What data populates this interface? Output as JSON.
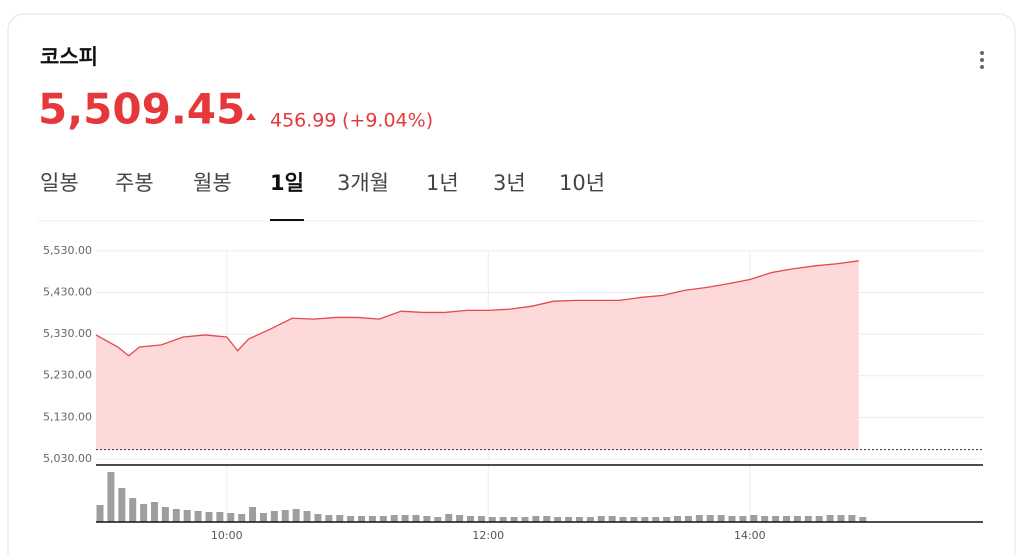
{
  "header": {
    "title": "코스피",
    "price": "5,509.45",
    "change": "456.99",
    "change_pct": "(+9.04%)"
  },
  "tabs": {
    "items": [
      "일봉",
      "주봉",
      "월봉",
      "1일",
      "3개월",
      "1년",
      "3년",
      "10년"
    ],
    "selected": 3
  },
  "chart_data": [
    {
      "type": "area",
      "color": "#e5484d",
      "fill": "#fdd9d9",
      "x": [
        "09:00",
        "09:10",
        "09:15",
        "09:20",
        "09:30",
        "09:40",
        "09:50",
        "10:00",
        "10:05",
        "10:10",
        "10:20",
        "10:30",
        "10:40",
        "10:50",
        "11:00",
        "11:10",
        "11:20",
        "11:30",
        "11:40",
        "11:50",
        "12:00",
        "12:10",
        "12:20",
        "12:30",
        "12:40",
        "12:50",
        "13:00",
        "13:10",
        "13:20",
        "13:30",
        "13:40",
        "13:50",
        "14:00",
        "14:10",
        "14:20",
        "14:30",
        "14:40",
        "14:50"
      ],
      "values": [
        5328,
        5299,
        5278,
        5299,
        5304,
        5323,
        5328,
        5323,
        5290,
        5318,
        5342,
        5368,
        5366,
        5370,
        5370,
        5366,
        5385,
        5382,
        5382,
        5387,
        5387,
        5390,
        5397,
        5409,
        5411,
        5411,
        5411,
        5418,
        5423,
        5435,
        5442,
        5451,
        5461,
        5478,
        5487,
        5494,
        5499,
        5506
      ],
      "reference_line": 5052.46,
      "xlim": [
        "09:00",
        "15:47"
      ],
      "xticks": [
        "10:00",
        "12:00",
        "14:00"
      ],
      "ylim": [
        5030,
        5580
      ],
      "yticks": [
        {
          "value": 5030,
          "label": "5,030.00"
        },
        {
          "value": 5130,
          "label": "5,130.00"
        },
        {
          "value": 5230,
          "label": "5,230.00"
        },
        {
          "value": 5330,
          "label": "5,330.00"
        },
        {
          "value": 5430,
          "label": "5,430.00"
        },
        {
          "value": 5530,
          "label": "5,530.00"
        }
      ],
      "grid": true
    },
    {
      "type": "bar",
      "color": "#9e9e9e",
      "x": [
        "09:00",
        "09:05",
        "09:10",
        "09:15",
        "09:20",
        "09:25",
        "09:30",
        "09:35",
        "09:40",
        "09:45",
        "09:50",
        "09:55",
        "10:00",
        "10:05",
        "10:10",
        "10:15",
        "10:20",
        "10:25",
        "10:30",
        "10:35",
        "10:40",
        "10:45",
        "10:50",
        "10:55",
        "11:00",
        "11:05",
        "11:10",
        "11:15",
        "11:20",
        "11:25",
        "11:30",
        "11:35",
        "11:40",
        "11:45",
        "11:50",
        "11:55",
        "12:00",
        "12:05",
        "12:10",
        "12:15",
        "12:20",
        "12:25",
        "12:30",
        "12:35",
        "12:40",
        "12:45",
        "12:50",
        "12:55",
        "13:00",
        "13:05",
        "13:10",
        "13:15",
        "13:20",
        "13:25",
        "13:30",
        "13:35",
        "13:40",
        "13:45",
        "13:50",
        "13:55",
        "14:00",
        "14:05",
        "14:10",
        "14:15",
        "14:20",
        "14:25",
        "14:30",
        "14:35",
        "14:40",
        "14:45",
        "14:50"
      ],
      "values": [
        17,
        50,
        34,
        24,
        18,
        20,
        15,
        13,
        12,
        11,
        10,
        10,
        9,
        8,
        15,
        9,
        11,
        12,
        13,
        11,
        8,
        7,
        7,
        6,
        6,
        6,
        6,
        7,
        7,
        7,
        6,
        5,
        8,
        7,
        6,
        6,
        5,
        5,
        5,
        5,
        6,
        6,
        5,
        5,
        5,
        5,
        6,
        6,
        5,
        5,
        5,
        5,
        5,
        6,
        6,
        7,
        7,
        7,
        6,
        6,
        7,
        6,
        6,
        6,
        6,
        6,
        6,
        7,
        7,
        7,
        5
      ],
      "xlim": [
        "09:00",
        "15:47"
      ],
      "xticks": [
        "10:00",
        "12:00",
        "14:00"
      ],
      "ylim": [
        0,
        57
      ]
    }
  ]
}
